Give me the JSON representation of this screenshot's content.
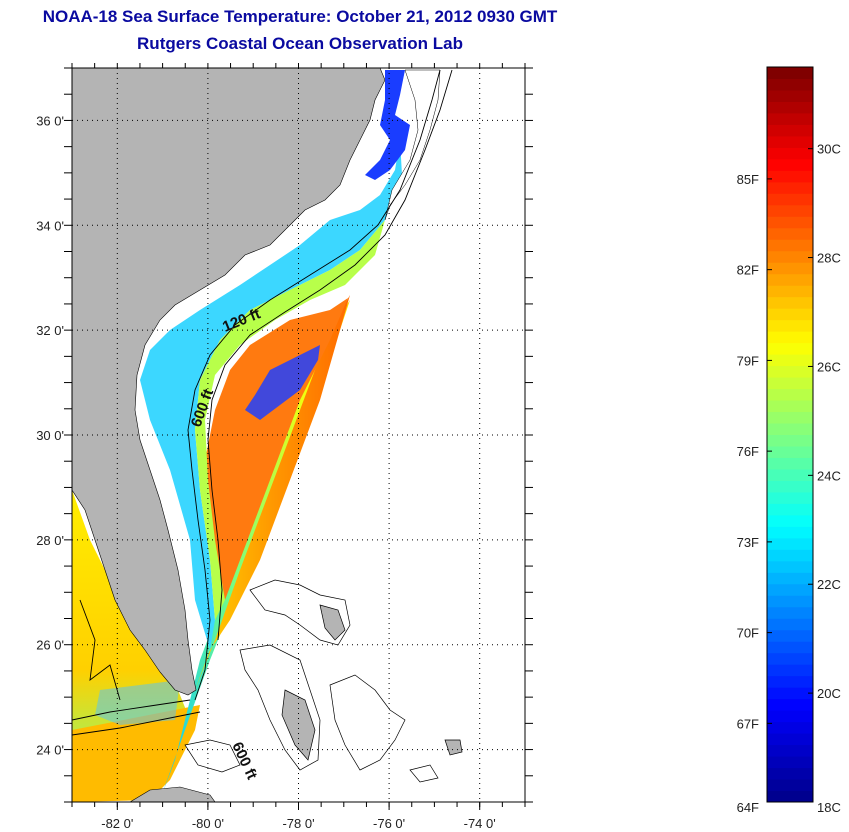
{
  "title": {
    "line1": "NOAA-18 Sea Surface Temperature:  October 21, 2012 0930 GMT",
    "line2": "Rutgers Coastal Ocean Observation Lab"
  },
  "map": {
    "lat_range": [
      23,
      37
    ],
    "lon_range": [
      -83,
      -73
    ],
    "lat_ticks": [
      {
        "value": 24,
        "label": "24 0'"
      },
      {
        "value": 26,
        "label": "26 0'"
      },
      {
        "value": 28,
        "label": "28 0'"
      },
      {
        "value": 30,
        "label": "30 0'"
      },
      {
        "value": 32,
        "label": "32 0'"
      },
      {
        "value": 34,
        "label": "34 0'"
      },
      {
        "value": 36,
        "label": "36 0'"
      }
    ],
    "lon_ticks": [
      {
        "value": -82,
        "label": "-82 0'"
      },
      {
        "value": -80,
        "label": "-80 0'"
      },
      {
        "value": -78,
        "label": "-78 0'"
      },
      {
        "value": -76,
        "label": "-76 0'"
      },
      {
        "value": -74,
        "label": "-74 0'"
      }
    ],
    "contour_labels": [
      "120 ft",
      "600 ft",
      "600 ft"
    ],
    "colors": {
      "land": "#b4b4b4",
      "ocean_nodata": "#ffffff",
      "grid": "#000000"
    }
  },
  "colorbar": {
    "fahrenheit_labels": [
      "85F",
      "82F",
      "79F",
      "76F",
      "73F",
      "70F",
      "67F",
      "64F"
    ],
    "celsius_labels": [
      "30C",
      "28C",
      "26C",
      "24C",
      "22C",
      "20C",
      "18C"
    ],
    "min_c": 18,
    "max_c": 31.5,
    "color_stops": [
      "#00008f",
      "#0000ff",
      "#0080ff",
      "#00ffff",
      "#80ff80",
      "#ffff00",
      "#ff8000",
      "#ff0000",
      "#800000"
    ]
  }
}
